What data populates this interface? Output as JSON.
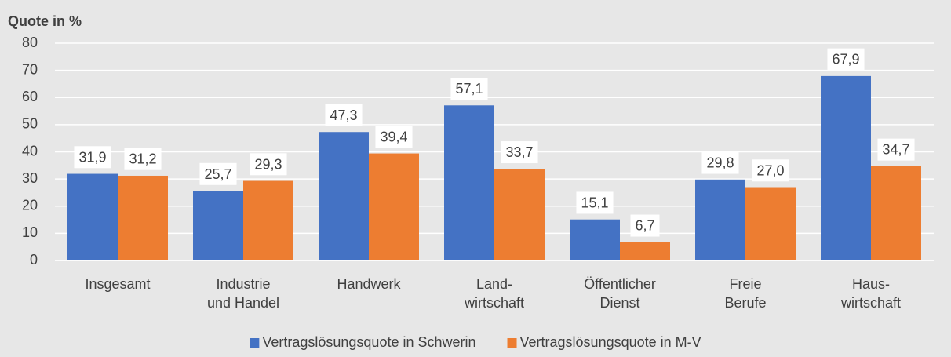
{
  "chart_data": {
    "type": "bar",
    "y_axis_title": "Quote in %",
    "categories": [
      "Insgesamt",
      "Industrie\nund Handel",
      "Handwerk",
      "Land-\nwirtschaft",
      "Öffentlicher\nDienst",
      "Freie\nBerufe",
      "Haus-\nwirtschaft"
    ],
    "series": [
      {
        "name": "Vertragslösungsquote in Schwerin",
        "color": "#4472c4",
        "values": [
          31.9,
          25.7,
          47.3,
          57.1,
          15.1,
          29.8,
          67.9
        ],
        "value_labels": [
          "31,9",
          "25,7",
          "47,3",
          "57,1",
          "15,1",
          "29,8",
          "67,9"
        ]
      },
      {
        "name": "Vertragslösungsquote in M-V",
        "color": "#ed7d31",
        "values": [
          31.2,
          29.3,
          39.4,
          33.7,
          6.7,
          27.0,
          34.7
        ],
        "value_labels": [
          "31,2",
          "29,3",
          "39,4",
          "33,7",
          "6,7",
          "27,0",
          "34,7"
        ]
      }
    ],
    "ylim": [
      0,
      80
    ],
    "yticks": [
      0,
      10,
      20,
      30,
      40,
      50,
      60,
      70,
      80
    ],
    "grid": true,
    "legend": "bottom"
  }
}
